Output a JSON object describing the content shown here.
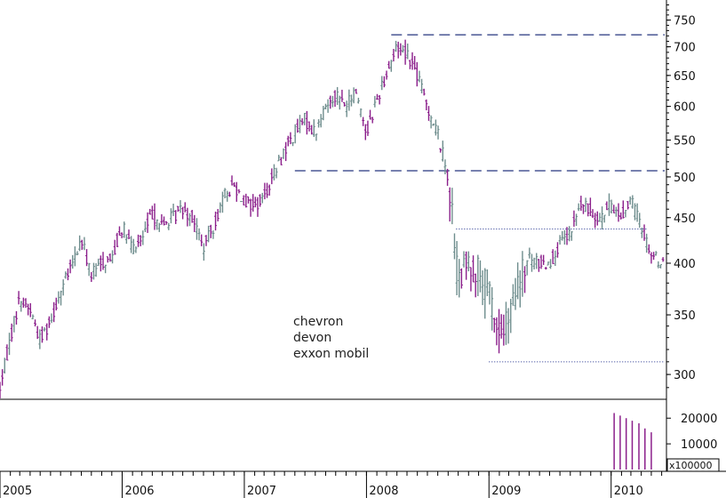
{
  "chart_data": {
    "type": "ohlc",
    "title": "",
    "annotation_lines": [
      "chevron",
      "devon",
      "exxon mobil"
    ],
    "price_axis": {
      "scale": "log",
      "range": [
        282,
        790
      ],
      "ticks": [
        300,
        350,
        400,
        450,
        500,
        550,
        600,
        650,
        700,
        750
      ],
      "tick_labels": [
        "300",
        "350",
        "400",
        "450",
        "500",
        "550",
        "600",
        "650",
        "700",
        "750"
      ],
      "position": "right"
    },
    "volume_axis": {
      "range": [
        0,
        27000
      ],
      "ticks": [
        10000,
        20000
      ],
      "tick_labels": [
        "10000",
        "20000"
      ],
      "multiplier_label": "x100000"
    },
    "time_axis": {
      "range": [
        "2005-01-01",
        "2010-06-10"
      ],
      "year_labels": [
        "2005",
        "2006",
        "2007",
        "2008",
        "2009",
        "2010"
      ]
    },
    "colors": {
      "up": "#6e8d8d",
      "down": "#8b1f8b",
      "reference": "#1a2a8a",
      "volume": "#8b1f8b"
    },
    "reference_lines": [
      {
        "style": "long-dash",
        "y": 722,
        "x_start": "2008-03-15",
        "x_end": "2010-06-10"
      },
      {
        "style": "long-dash",
        "y": 508,
        "x_start": "2007-06-01",
        "x_end": "2010-06-10"
      },
      {
        "style": "dotted",
        "y": 437,
        "x_start": "2008-09-25",
        "x_end": "2010-04-20"
      },
      {
        "style": "dotted",
        "y": 310,
        "x_start": "2009-01-01",
        "x_end": "2010-06-10"
      }
    ],
    "price_path": [
      [
        "2005-01-03",
        290
      ],
      [
        "2005-02-01",
        330
      ],
      [
        "2005-03-01",
        365
      ],
      [
        "2005-04-01",
        355
      ],
      [
        "2005-05-01",
        328
      ],
      [
        "2005-06-01",
        345
      ],
      [
        "2005-07-01",
        372
      ],
      [
        "2005-08-01",
        395
      ],
      [
        "2005-09-01",
        425
      ],
      [
        "2005-10-01",
        388
      ],
      [
        "2005-11-01",
        400
      ],
      [
        "2005-12-01",
        405
      ],
      [
        "2006-01-01",
        440
      ],
      [
        "2006-02-01",
        415
      ],
      [
        "2006-03-01",
        425
      ],
      [
        "2006-04-01",
        455
      ],
      [
        "2006-05-01",
        440
      ],
      [
        "2006-06-01",
        450
      ],
      [
        "2006-07-01",
        462
      ],
      [
        "2006-08-01",
        450
      ],
      [
        "2006-09-01",
        415
      ],
      [
        "2006-10-01",
        440
      ],
      [
        "2006-11-01",
        475
      ],
      [
        "2006-12-01",
        490
      ],
      [
        "2007-01-01",
        470
      ],
      [
        "2007-02-01",
        462
      ],
      [
        "2007-03-01",
        475
      ],
      [
        "2007-04-01",
        505
      ],
      [
        "2007-05-01",
        535
      ],
      [
        "2007-06-01",
        560
      ],
      [
        "2007-07-01",
        580
      ],
      [
        "2007-08-01",
        560
      ],
      [
        "2007-09-01",
        600
      ],
      [
        "2007-10-01",
        620
      ],
      [
        "2007-11-01",
        600
      ],
      [
        "2007-12-01",
        625
      ],
      [
        "2008-01-01",
        560
      ],
      [
        "2008-02-01",
        610
      ],
      [
        "2008-03-01",
        655
      ],
      [
        "2008-04-01",
        700
      ],
      [
        "2008-05-01",
        690
      ],
      [
        "2008-06-01",
        650
      ],
      [
        "2008-07-01",
        600
      ],
      [
        "2008-08-01",
        560
      ],
      [
        "2008-09-01",
        500
      ],
      [
        "2008-10-01",
        380
      ],
      [
        "2008-11-01",
        400
      ],
      [
        "2008-12-01",
        390
      ],
      [
        "2009-01-01",
        370
      ],
      [
        "2009-02-01",
        330
      ],
      [
        "2009-03-01",
        345
      ],
      [
        "2009-04-01",
        380
      ],
      [
        "2009-05-01",
        405
      ],
      [
        "2009-06-01",
        400
      ],
      [
        "2009-07-01",
        400
      ],
      [
        "2009-08-01",
        420
      ],
      [
        "2009-09-01",
        430
      ],
      [
        "2009-10-01",
        465
      ],
      [
        "2009-11-01",
        458
      ],
      [
        "2009-12-01",
        450
      ],
      [
        "2010-01-01",
        465
      ],
      [
        "2010-02-01",
        450
      ],
      [
        "2010-03-01",
        472
      ],
      [
        "2010-04-01",
        440
      ],
      [
        "2010-05-01",
        410
      ],
      [
        "2010-06-01",
        400
      ]
    ],
    "volume_bars": [
      [
        "2010-01-10",
        22000
      ],
      [
        "2010-01-28",
        21000
      ],
      [
        "2010-02-15",
        20000
      ],
      [
        "2010-03-05",
        19000
      ],
      [
        "2010-03-25",
        18000
      ],
      [
        "2010-04-12",
        16000
      ],
      [
        "2010-05-01",
        14500
      ]
    ]
  }
}
